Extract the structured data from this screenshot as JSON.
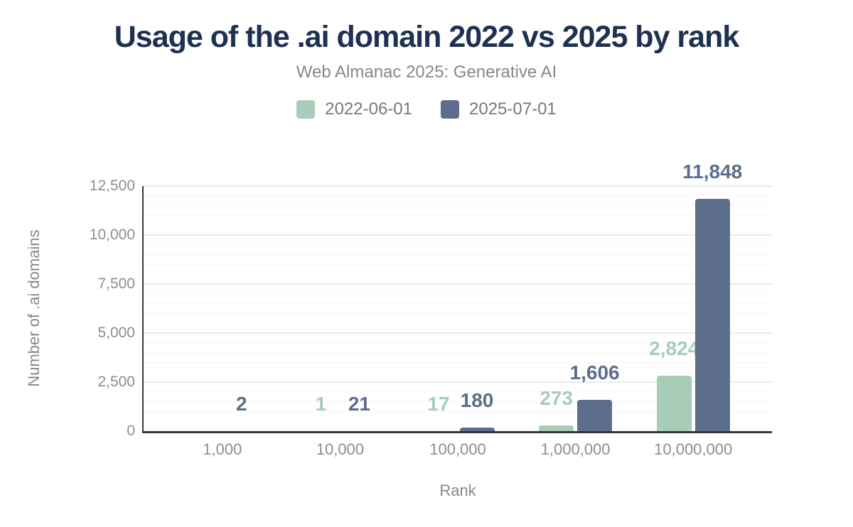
{
  "header": {
    "title": "Usage of the .ai domain 2022 vs 2025 by rank",
    "subtitle": "Web Almanac 2025: Generative AI"
  },
  "legend": {
    "items": [
      {
        "label": "2022-06-01",
        "color": "#a8ccb8"
      },
      {
        "label": "2025-07-01",
        "color": "#5d6e8c"
      }
    ]
  },
  "axes": {
    "x_title": "Rank",
    "y_title": "Number of .ai domains"
  },
  "colors": {
    "title_text": "#1e3150",
    "subtitle_text": "#85888b",
    "legend_text": "#76787b",
    "tick_text": "#8b8e91",
    "axis_title_text": "#85878a",
    "axis_line": "#333639",
    "gridline_major": "#ebebeb",
    "gridline_minor": "#f5f5f5",
    "background": "#ffffff"
  },
  "chart_data": {
    "type": "bar",
    "title": "Usage of the .ai domain 2022 vs 2025 by rank",
    "subtitle": "Web Almanac 2025: Generative AI",
    "categories": [
      "1,000",
      "10,000",
      "100,000",
      "1,000,000",
      "10,000,000"
    ],
    "series": [
      {
        "name": "2022-06-01",
        "color": "#a8ccb8",
        "values": [
          0,
          1,
          17,
          273,
          2824
        ],
        "labels": [
          "",
          "1",
          "17",
          "273",
          "2,824"
        ]
      },
      {
        "name": "2025-07-01",
        "color": "#5d6e8c",
        "values": [
          2,
          21,
          180,
          1606,
          11848
        ],
        "labels": [
          "2",
          "21",
          "180",
          "1,606",
          "11,848"
        ]
      }
    ],
    "xlabel": "Rank",
    "ylabel": "Number of .ai domains",
    "ylim": [
      0,
      12500
    ],
    "yticks": [
      {
        "value": 0,
        "label": "0"
      },
      {
        "value": 2500,
        "label": "2,500"
      },
      {
        "value": 5000,
        "label": "5,000"
      },
      {
        "value": 7500,
        "label": "7,500"
      },
      {
        "value": 10000,
        "label": "10,000"
      },
      {
        "value": 12500,
        "label": "12,500"
      }
    ],
    "grid": {
      "major_interval": 2500,
      "minor_interval": 500
    },
    "legend_position": "top",
    "value_labels_shown": true
  }
}
